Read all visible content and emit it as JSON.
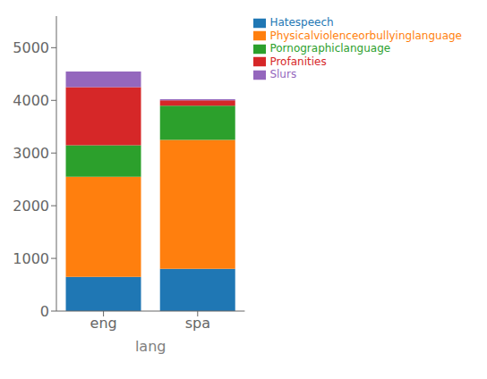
{
  "chart_data": {
    "type": "bar",
    "xlabel": "lang",
    "categories": [
      "eng",
      "spa"
    ],
    "series": [
      {
        "name": "Hatespeech",
        "color": "#1f77b4",
        "values": [
          650,
          800
        ]
      },
      {
        "name": "Physicalviolenceorbullyinglanguage",
        "color": "#ff7f0e",
        "values": [
          1900,
          2450
        ]
      },
      {
        "name": "Pornographiclanguage",
        "color": "#2ca02c",
        "values": [
          600,
          650
        ]
      },
      {
        "name": "Profanities",
        "color": "#d62728",
        "values": [
          1100,
          100
        ]
      },
      {
        "name": "Slurs",
        "color": "#9467bd",
        "values": [
          300,
          20
        ]
      }
    ],
    "stacked": true,
    "ylim": [
      0,
      5600
    ],
    "yticks": [
      0,
      1000,
      2000,
      3000,
      4000,
      5000
    ],
    "legend": "upper right",
    "grid": false
  }
}
